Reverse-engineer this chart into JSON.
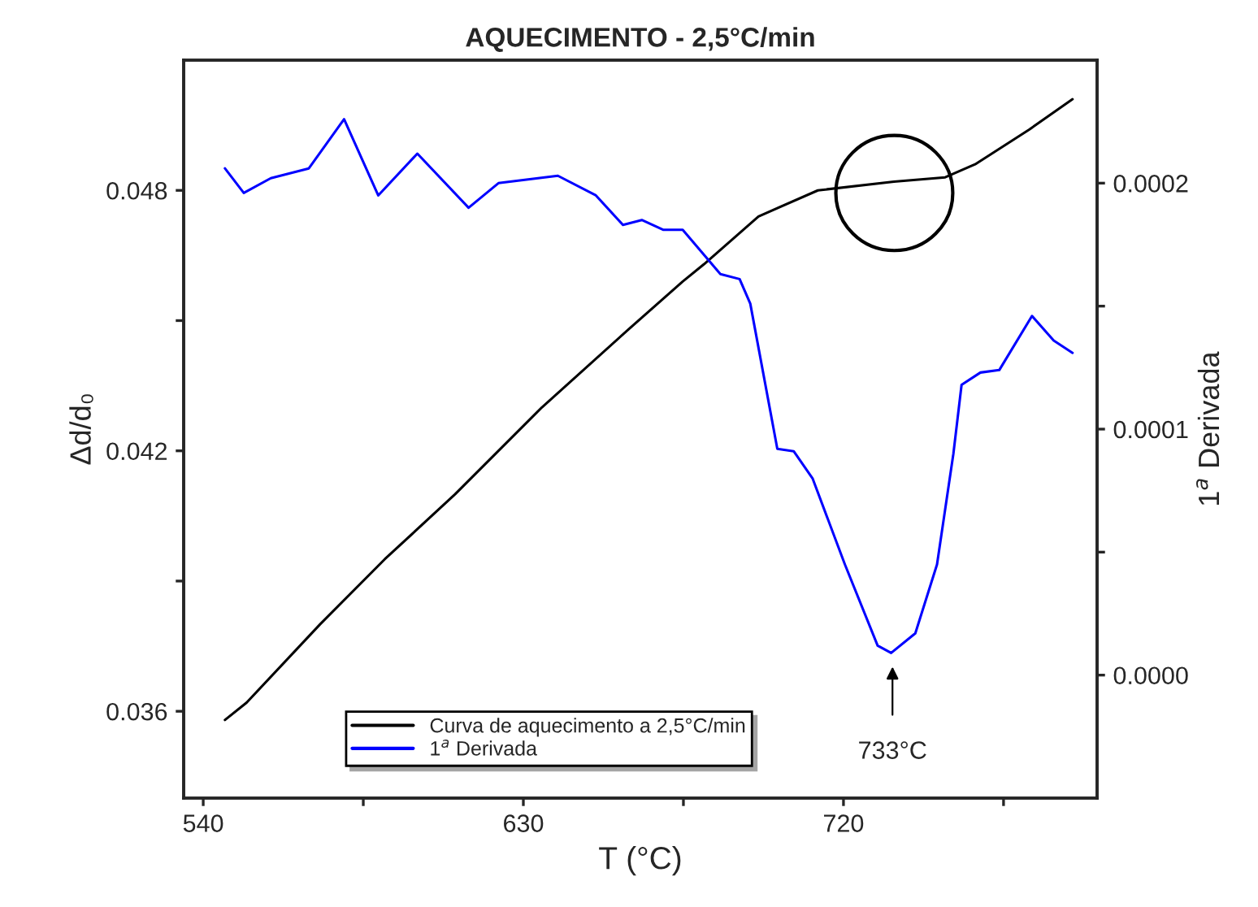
{
  "chart_data": {
    "type": "line",
    "title": "AQUECIMENTO - 2,5°C/min",
    "xlabel": "T (°C)",
    "ylabel": "Δd/d₀",
    "y2label": "1$^{a}$ Derivada",
    "xlim": [
      534.5,
      791.3
    ],
    "xticks": [
      540,
      {
        "value": 585,
        "label": null
      },
      630,
      {
        "value": 675,
        "label": null
      },
      720,
      {
        "value": 765,
        "label": null
      }
    ],
    "ylim": [
      0.034,
      0.051
    ],
    "yticks": [
      0.036,
      {
        "value": 0.039,
        "label": null
      },
      0.042,
      {
        "value": 0.045,
        "label": null
      },
      0.048
    ],
    "y2lim": [
      -5e-05,
      0.00025
    ],
    "y2ticks": [
      {
        "value": 0.0,
        "label": "0.0000"
      },
      {
        "value": 5e-05,
        "label": null
      },
      {
        "value": 0.0001,
        "label": "0.0001"
      },
      {
        "value": 0.00015,
        "label": null
      },
      {
        "value": 0.0002,
        "label": "0.0002"
      }
    ],
    "series": [
      {
        "name": "Curva de aquecimento a 2,5°C/min",
        "color": "#000000",
        "x": [
          546.1,
          552.2,
          572.8,
          591.0,
          610.8,
          635.2,
          659.6,
          674.8,
          680.8,
          696.1,
          712.8,
          734.2,
          748.6,
          757.0,
          772.2,
          784.4
        ],
        "values": [
          0.0358,
          0.0362,
          0.038,
          0.0395,
          0.041,
          0.043,
          0.0448,
          0.0459,
          0.0463,
          0.0474,
          0.048,
          0.0482,
          0.0483,
          0.0486,
          0.0494,
          0.0501
        ]
      },
      {
        "name": "1$^{a}$ Derivada",
        "color": "#0000ff",
        "axis": "y2",
        "x": [
          546.1,
          551.4,
          559.0,
          569.7,
          579.6,
          589.2,
          600.2,
          614.6,
          623.0,
          639.7,
          650.4,
          658.0,
          663.3,
          669.4,
          674.8,
          685.4,
          690.8,
          693.8,
          701.4,
          706.0,
          711.3,
          720.4,
          729.6,
          733.4,
          740.2,
          746.3,
          750.9,
          753.2,
          758.5,
          763.8,
          773.0,
          779.1,
          784.4
        ],
        "values": [
          0.000206,
          0.000196,
          0.000202,
          0.000206,
          0.000226,
          0.000195,
          0.000212,
          0.00019,
          0.0002,
          0.000203,
          0.000195,
          0.000183,
          0.000185,
          0.000181,
          0.000181,
          0.000163,
          0.000161,
          0.000151,
          9.2e-05,
          9.1e-05,
          8e-05,
          4.5e-05,
          1.2e-05,
          9e-06,
          1.7e-05,
          4.5e-05,
          9e-05,
          0.000118,
          0.000123,
          0.000124,
          0.000146,
          0.000136,
          0.000131
        ]
      }
    ],
    "annotations": [
      "733°C"
    ],
    "legend": "bottom",
    "grid": false,
    "marker": "none",
    "line_style": "solid"
  }
}
